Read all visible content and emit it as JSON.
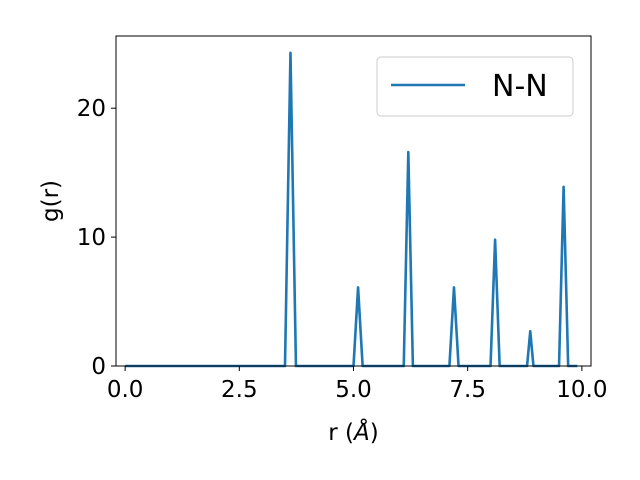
{
  "chart_data": {
    "type": "line",
    "xlabel_main": "r (",
    "xlabel_unit": "Å",
    "xlabel_close": ")",
    "ylabel": "g(r)",
    "xlim": [
      -0.2,
      10.2
    ],
    "ylim": [
      0,
      25.6
    ],
    "xticks": [
      0.0,
      2.5,
      5.0,
      7.5,
      10.0
    ],
    "xtick_labels": [
      "0.0",
      "2.5",
      "5.0",
      "7.5",
      "10.0"
    ],
    "yticks": [
      0,
      10,
      20
    ],
    "ytick_labels": [
      "0",
      "10",
      "20"
    ],
    "grid": false,
    "legend_position": "top-right",
    "series": [
      {
        "name": "N-N",
        "color": "#1f77b4",
        "x": [
          0.0,
          3.5,
          3.62,
          3.74,
          5.0,
          5.1,
          5.2,
          6.1,
          6.2,
          6.3,
          7.1,
          7.2,
          7.3,
          8.0,
          8.1,
          8.2,
          8.8,
          8.87,
          8.94,
          9.5,
          9.6,
          9.7,
          9.9
        ],
        "y": [
          0,
          0,
          24.3,
          0,
          0,
          6.1,
          0,
          0,
          16.6,
          0,
          0,
          6.1,
          0,
          0,
          9.8,
          0,
          0,
          2.7,
          0,
          0,
          13.9,
          0,
          0
        ]
      }
    ]
  }
}
